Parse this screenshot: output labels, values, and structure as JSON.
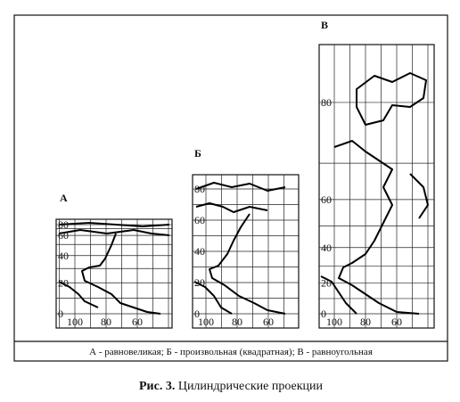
{
  "panels": [
    {
      "label": "А",
      "lat_labels": [
        80,
        60,
        40,
        20,
        0
      ],
      "lon_labels": [
        100,
        80,
        60
      ]
    },
    {
      "label": "Б",
      "lat_labels": [
        80,
        60,
        40,
        20,
        0
      ],
      "lon_labels": [
        100,
        80,
        60
      ]
    },
    {
      "label": "В",
      "lat_labels": [
        80,
        60,
        40,
        20,
        0
      ],
      "lon_labels": [
        100,
        80,
        60
      ]
    }
  ],
  "legend": "А - равновеликая;  Б - произвольная (квадратная);  В - равноугольная",
  "caption": {
    "number": "Рис. 3.",
    "text": "Цилиндрические проекции"
  }
}
